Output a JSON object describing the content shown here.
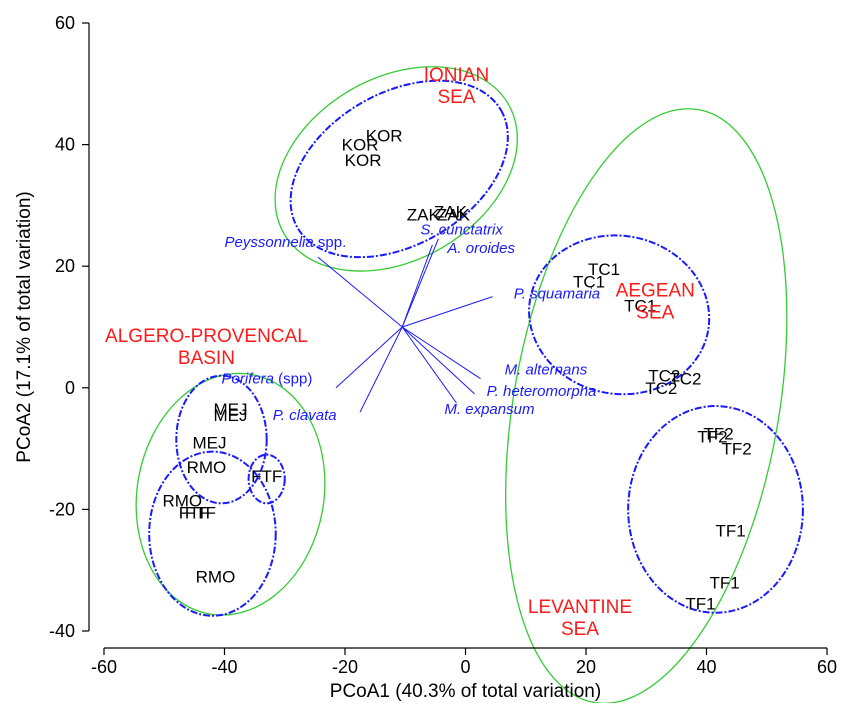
{
  "chart_data": {
    "type": "scatter",
    "xlabel": "PCoA1 (40.3% of total variation)",
    "ylabel": "PCoA2 (17.1% of total variation)",
    "xlim": [
      -60,
      60
    ],
    "ylim": [
      -40,
      60
    ],
    "xticks": [
      -60,
      -40,
      -20,
      0,
      20,
      40,
      60
    ],
    "yticks": [
      -40,
      -20,
      0,
      20,
      40,
      60
    ],
    "grid": false,
    "colors": {
      "sites": "#000000",
      "species": "#1a1aff",
      "regions": "#ff1a1a",
      "outer_hull": "#33cc33",
      "inner_cluster": "#1a1aff"
    },
    "sites": [
      {
        "label": "KOR",
        "x": -13.5,
        "y": 41.5
      },
      {
        "label": "KOR",
        "x": -17.5,
        "y": 40
      },
      {
        "label": "KOR",
        "x": -17,
        "y": 37.5
      },
      {
        "label": "ZAK",
        "x": -7,
        "y": 28.5
      },
      {
        "label": "ZAK",
        "x": -2.5,
        "y": 29
      },
      {
        "label": "ZAK",
        "x": -2,
        "y": 28.5
      },
      {
        "label": "TC1",
        "x": 23,
        "y": 19.5
      },
      {
        "label": "TC1",
        "x": 20.5,
        "y": 17.5
      },
      {
        "label": "TC1",
        "x": 29,
        "y": 13.5
      },
      {
        "label": "TC2",
        "x": 33,
        "y": 2
      },
      {
        "label": "TC2",
        "x": 36.5,
        "y": 1.5
      },
      {
        "label": "TC2",
        "x": 32.5,
        "y": 0
      },
      {
        "label": "TF2",
        "x": 42,
        "y": -7.5
      },
      {
        "label": "TF2",
        "x": 41,
        "y": -8
      },
      {
        "label": "TF2",
        "x": 45,
        "y": -10
      },
      {
        "label": "TF1",
        "x": 44,
        "y": -23.5
      },
      {
        "label": "TF1",
        "x": 43,
        "y": -32
      },
      {
        "label": "TF1",
        "x": 39,
        "y": -35.5
      },
      {
        "label": "MEJ",
        "x": -39,
        "y": -3.5
      },
      {
        "label": "MEJ",
        "x": -39,
        "y": -4.5
      },
      {
        "label": "MEJ",
        "x": -42.5,
        "y": -9
      },
      {
        "label": "RMO",
        "x": -43,
        "y": -13
      },
      {
        "label": "RMO",
        "x": -47,
        "y": -18.5
      },
      {
        "label": "RMO",
        "x": -41.5,
        "y": -31
      },
      {
        "label": "FTF",
        "x": -33,
        "y": -14.5
      },
      {
        "label": "FTF",
        "x": -45,
        "y": -20.5
      },
      {
        "label": "FTF",
        "x": -44,
        "y": -20.5
      }
    ],
    "vectors": [
      {
        "label": "Peyssonnelia",
        "suffix": " spp.",
        "italic_all": false,
        "x": -24.5,
        "y": 21.5,
        "lx": -40,
        "ly": 24
      },
      {
        "label": "S. cunctatrix",
        "suffix": "",
        "italic_all": true,
        "x": -4.5,
        "y": 24.5,
        "lx": -7.5,
        "ly": 26
      },
      {
        "label": "A. oroides",
        "suffix": "",
        "italic_all": true,
        "x": -5.5,
        "y": 23.5,
        "lx": -3,
        "ly": 23
      },
      {
        "label": "P. squamaria",
        "suffix": "",
        "italic_all": true,
        "x": 4.5,
        "y": 15,
        "lx": 8,
        "ly": 15.5
      },
      {
        "label": "M. alternans",
        "suffix": "",
        "italic_all": true,
        "x": 2.5,
        "y": 1.5,
        "lx": 6.5,
        "ly": 3
      },
      {
        "label": "P. heteromorpha",
        "suffix": "",
        "italic_all": true,
        "x": 1.5,
        "y": -1,
        "lx": 3.5,
        "ly": -0.5
      },
      {
        "label": "M. expansum",
        "suffix": "",
        "italic_all": true,
        "x": -1.5,
        "y": -2.5,
        "lx": -3.5,
        "ly": -3.5
      },
      {
        "label": "P. clavata",
        "suffix": "",
        "italic_all": true,
        "x": -17.5,
        "y": -4,
        "lx": -32,
        "ly": -4.5
      },
      {
        "label": "Porifera",
        "suffix": " (spp)",
        "italic_all": false,
        "x": -21.5,
        "y": 0,
        "lx": -40.5,
        "ly": 1.5
      }
    ],
    "vector_origin": {
      "x": -10.5,
      "y": 10
    },
    "regions": [
      {
        "lines": [
          "IONIAN",
          "SEA"
        ],
        "x": -1.5,
        "y": 50.5
      },
      {
        "lines": [
          "AEGEAN",
          "SEA"
        ],
        "x": 31.5,
        "y": 15.0
      },
      {
        "lines": [
          "ALGERO-PROVENCAL",
          "BASIN"
        ],
        "x": -43,
        "y": 7.5
      },
      {
        "lines": [
          "LEVANTINE",
          "SEA"
        ],
        "x": 19,
        "y": -37
      }
    ],
    "outer_hulls": [
      {
        "cx": -11.5,
        "cy": 36,
        "rx": 21.5,
        "ry": 15,
        "rot": -30
      },
      {
        "cx": 30,
        "cy": -3,
        "rx": 22,
        "ry": 49.5,
        "rot": 10
      },
      {
        "cx": -39,
        "cy": -17.5,
        "rx": 15.5,
        "ry": 20,
        "rot": 10
      }
    ],
    "inner_clusters": [
      {
        "cx": -11,
        "cy": 36,
        "rx": 19.5,
        "ry": 12.5,
        "rot": -30
      },
      {
        "cx": 25.5,
        "cy": 12,
        "rx": 15,
        "ry": 13,
        "rot": 10
      },
      {
        "cx": 41.5,
        "cy": -20,
        "rx": 14.5,
        "ry": 17,
        "rot": 0
      },
      {
        "cx": -40.5,
        "cy": -8.5,
        "rx": 7.5,
        "ry": 10.5,
        "rot": 0
      },
      {
        "cx": -33,
        "cy": -15,
        "rx": 3,
        "ry": 4,
        "rot": 0
      },
      {
        "cx": -42,
        "cy": -24,
        "rx": 10.5,
        "ry": 13.5,
        "rot": 0
      }
    ]
  }
}
